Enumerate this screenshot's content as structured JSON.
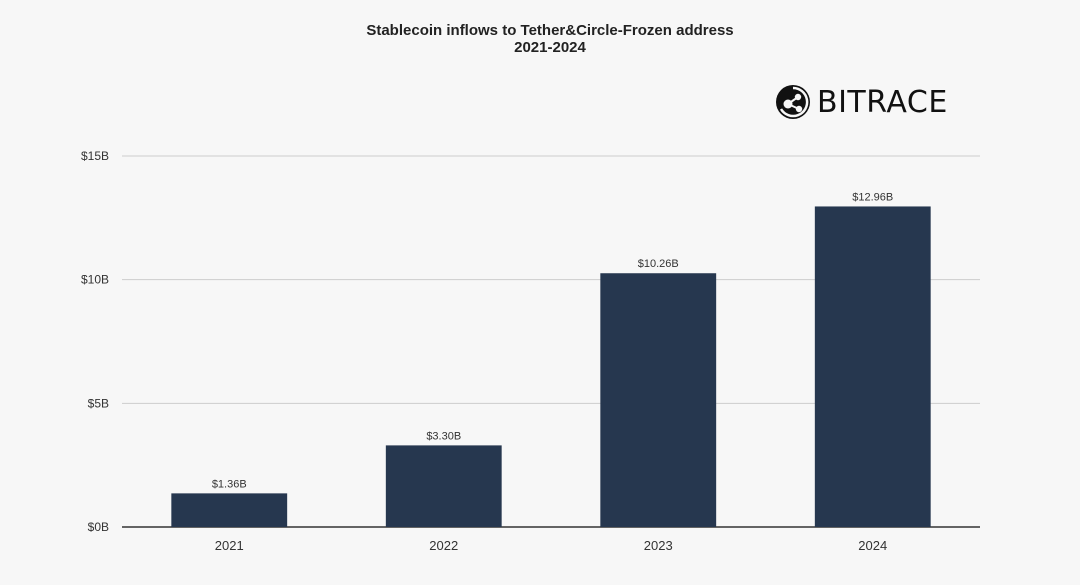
{
  "title_line1": "Stablecoin inflows to Tether&Circle-Frozen address",
  "title_line2": "2021-2024",
  "logo": {
    "text": "BITRACE",
    "icon": "bitrace-logo-icon"
  },
  "colors": {
    "bar": "#26374f",
    "grid": "#cccccc",
    "axis": "#333333"
  },
  "chart_data": {
    "type": "bar",
    "title": "Stablecoin inflows to Tether&Circle-Frozen address 2021-2024",
    "categories": [
      "2021",
      "2022",
      "2023",
      "2024"
    ],
    "values": [
      1.36,
      3.3,
      10.26,
      12.96
    ],
    "value_labels": [
      "$1.36B",
      "$3.30B",
      "$10.26B",
      "$12.96B"
    ],
    "xlabel": "",
    "ylabel": "",
    "ylim": [
      0,
      15
    ],
    "yticks": [
      0,
      5,
      10,
      15
    ],
    "ytick_labels": [
      "$0B",
      "$5B",
      "$10B",
      "$15B"
    ],
    "grid": true,
    "legend": "none"
  }
}
